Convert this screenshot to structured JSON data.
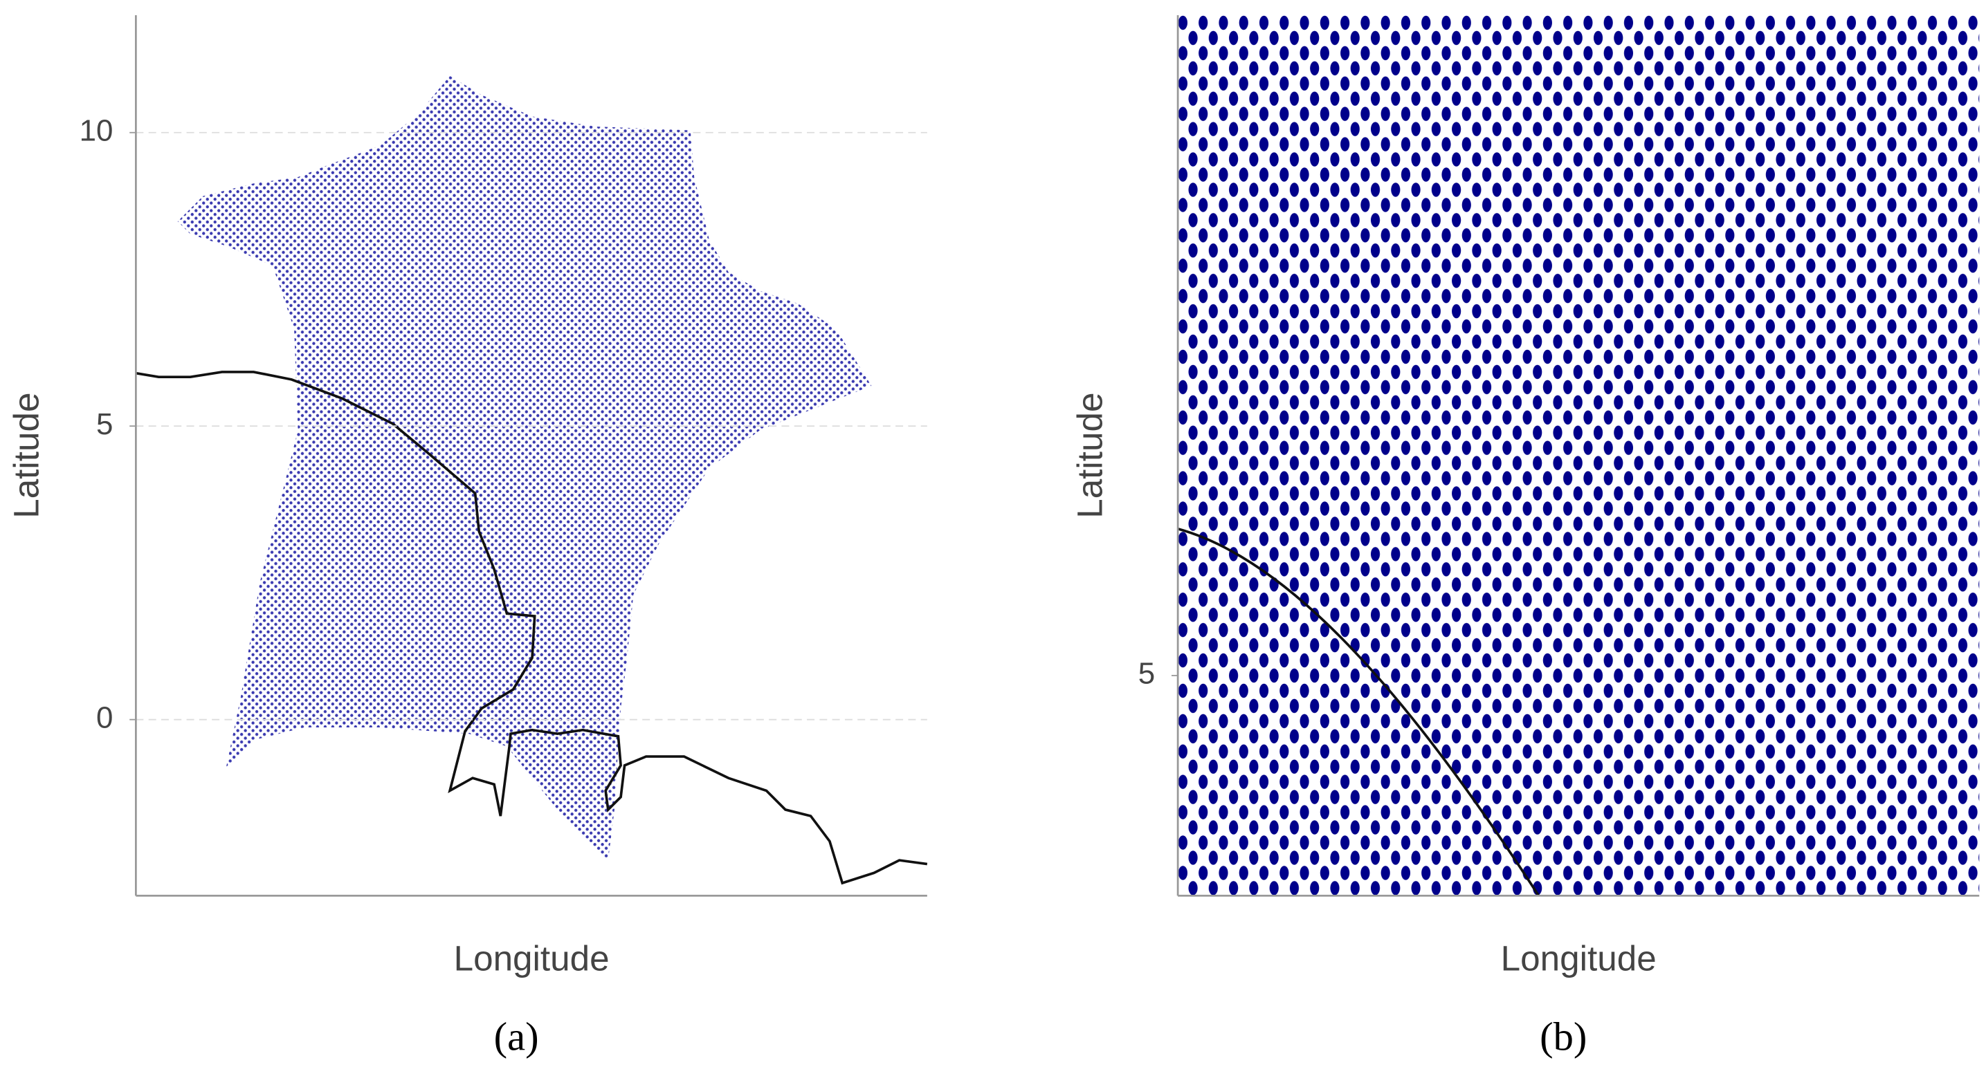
{
  "chart_data": [
    {
      "type": "map",
      "caption": "(a)",
      "x_label": "Longitude",
      "y_label": "Latitude",
      "ylim": [
        -3,
        12
      ],
      "yticks": [
        0,
        5,
        10
      ],
      "grid": true,
      "point_color": "#3a3ab0"
    },
    {
      "type": "map",
      "caption": "(b)",
      "x_label": "Longitude",
      "y_label": "Latitude",
      "ylim": [
        4,
        8
      ],
      "yticks": [
        5
      ],
      "grid": false,
      "point_color": "#00008b"
    }
  ]
}
